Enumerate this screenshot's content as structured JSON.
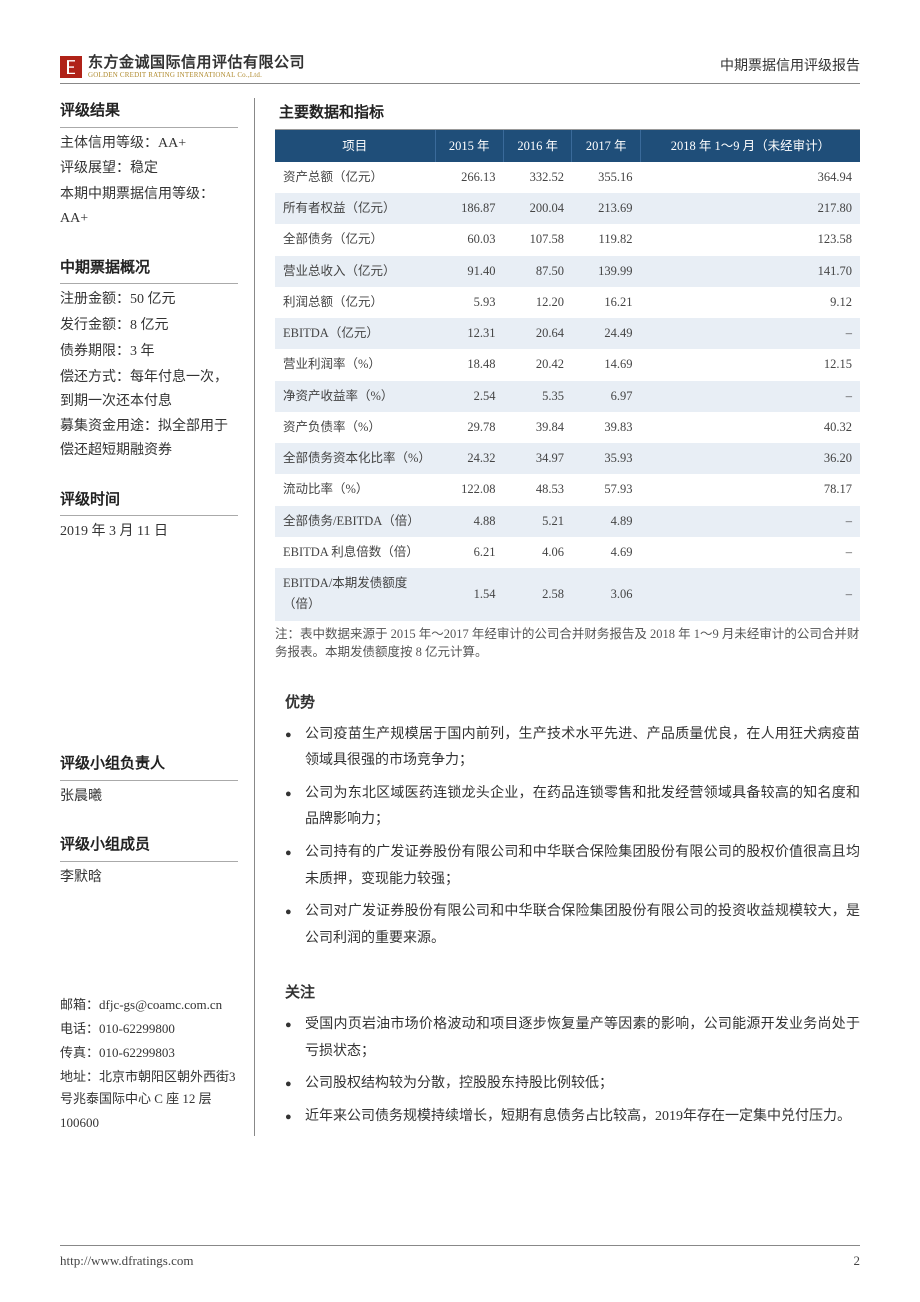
{
  "header": {
    "logo_cn": "东方金诚国际信用评估有限公司",
    "logo_en": "GOLDEN CREDIT RATING INTERNATIONAL Co.,Ltd.",
    "doc_type": "中期票据信用评级报告"
  },
  "sidebar": {
    "rating_result": {
      "title": "评级结果",
      "lines": [
        "主体信用等级：AA+",
        "评级展望：稳定",
        "本期中期票据信用等级：AA+"
      ]
    },
    "note_overview": {
      "title": "中期票据概况",
      "lines": [
        "注册金额：50 亿元",
        "发行金额：8 亿元",
        "债券期限：3 年",
        "偿还方式：每年付息一次，到期一次还本付息",
        "募集资金用途：拟全部用于偿还超短期融资券"
      ]
    },
    "rating_date": {
      "title": "评级时间",
      "value": "2019 年 3 月 11 日"
    },
    "team_lead": {
      "title": "评级小组负责人",
      "value": "张晨曦"
    },
    "team_members": {
      "title": "评级小组成员",
      "value": "李默晗"
    },
    "contact": {
      "email_label": "邮箱：",
      "email": "dfjc-gs@coamc.com.cn",
      "tel_label": "电话：",
      "tel": "010-62299800",
      "fax_label": "传真：",
      "fax": "010-62299803",
      "addr_label": "地址：",
      "addr": "北京市朝阳区朝外西街3 号兆泰国际中心 C 座 12 层",
      "postcode": "100600"
    }
  },
  "main": {
    "table_title": "主要数据和指标",
    "table": {
      "header_bg": "#1f4e79",
      "stripe_bg": "#e8eef5",
      "columns": [
        "项目",
        "2015 年",
        "2016 年",
        "2017 年",
        "2018 年 1～9 月（未经审计）"
      ],
      "rows": [
        {
          "label": "资产总额（亿元）",
          "v": [
            "266.13",
            "332.52",
            "355.16",
            "364.94"
          ]
        },
        {
          "label": "所有者权益（亿元）",
          "v": [
            "186.87",
            "200.04",
            "213.69",
            "217.80"
          ]
        },
        {
          "label": "全部债务（亿元）",
          "v": [
            "60.03",
            "107.58",
            "119.82",
            "123.58"
          ]
        },
        {
          "label": "营业总收入（亿元）",
          "v": [
            "91.40",
            "87.50",
            "139.99",
            "141.70"
          ]
        },
        {
          "label": "利润总额（亿元）",
          "v": [
            "5.93",
            "12.20",
            "16.21",
            "9.12"
          ]
        },
        {
          "label": "EBITDA（亿元）",
          "v": [
            "12.31",
            "20.64",
            "24.49",
            "–"
          ]
        },
        {
          "label": "营业利润率（%）",
          "v": [
            "18.48",
            "20.42",
            "14.69",
            "12.15"
          ]
        },
        {
          "label": "净资产收益率（%）",
          "v": [
            "2.54",
            "5.35",
            "6.97",
            "–"
          ]
        },
        {
          "label": "资产负债率（%）",
          "v": [
            "29.78",
            "39.84",
            "39.83",
            "40.32"
          ]
        },
        {
          "label": "全部债务资本化比率（%）",
          "v": [
            "24.32",
            "34.97",
            "35.93",
            "36.20"
          ]
        },
        {
          "label": "流动比率（%）",
          "v": [
            "122.08",
            "48.53",
            "57.93",
            "78.17"
          ]
        },
        {
          "label": "全部债务/EBITDA（倍）",
          "v": [
            "4.88",
            "5.21",
            "4.89",
            "–"
          ]
        },
        {
          "label": "EBITDA 利息倍数（倍）",
          "v": [
            "6.21",
            "4.06",
            "4.69",
            "–"
          ]
        },
        {
          "label": "EBITDA/本期发债额度（倍）",
          "v": [
            "1.54",
            "2.58",
            "3.06",
            "–"
          ]
        }
      ],
      "note": "注：表中数据来源于 2015 年～2017 年经审计的公司合并财务报告及 2018 年 1～9 月未经审计的公司合并财务报表。本期发债额度按 8 亿元计算。"
    },
    "strengths": {
      "title": "优势",
      "items": [
        "公司疫苗生产规模居于国内前列，生产技术水平先进、产品质量优良，在人用狂犬病疫苗领域具很强的市场竞争力；",
        "公司为东北区域医药连锁龙头企业，在药品连锁零售和批发经营领域具备较高的知名度和品牌影响力；",
        "公司持有的广发证券股份有限公司和中华联合保险集团股份有限公司的股权价值很高且均未质押，变现能力较强；",
        "公司对广发证券股份有限公司和中华联合保险集团股份有限公司的投资收益规模较大，是公司利润的重要来源。"
      ]
    },
    "concerns": {
      "title": "关注",
      "items": [
        "受国内页岩油市场价格波动和项目逐步恢复量产等因素的影响，公司能源开发业务尚处于亏损状态；",
        "公司股权结构较为分散，控股股东持股比例较低；",
        "近年来公司债务规模持续增长，短期有息债务占比较高，2019年存在一定集中兑付压力。"
      ]
    }
  },
  "footer": {
    "url": "http://www.dfratings.com",
    "page_num": "2"
  }
}
